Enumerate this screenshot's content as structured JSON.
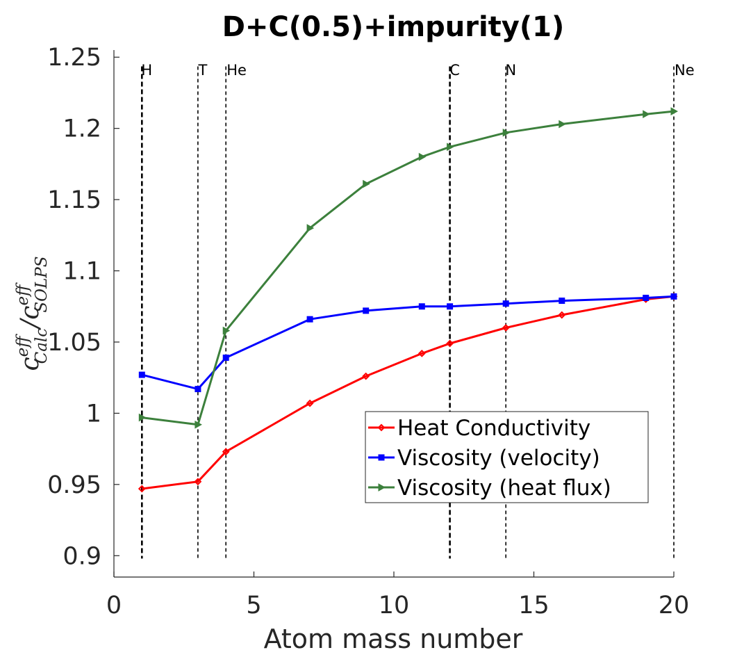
{
  "chart_data": {
    "type": "line",
    "title": "D+C(0.5)+impurity(1)",
    "xlabel": "Atom mass number",
    "ylabel": {
      "base1": "c",
      "sup1": "eff",
      "sub1": "Calc",
      "slash": "/",
      "base2": "c",
      "sup2": "eff",
      "sub2": "SOLPS"
    },
    "xlim": [
      0,
      20
    ],
    "ylim": [
      0.885,
      1.255
    ],
    "xticks": [
      0,
      5,
      10,
      15,
      20
    ],
    "xtick_labels": [
      "0",
      "5",
      "10",
      "15",
      "20"
    ],
    "yticks": [
      0.9,
      0.95,
      1.0,
      1.05,
      1.1,
      1.15,
      1.2,
      1.25
    ],
    "ytick_labels": [
      "0.9",
      "0.95",
      "1",
      "1.05",
      "1.1",
      "1.15",
      "1.2",
      "1.25"
    ],
    "grid": false,
    "legend_position": "lower-right",
    "element_markers": [
      {
        "label": "H",
        "x": 1,
        "style": "thick"
      },
      {
        "label": "T",
        "x": 3,
        "style": "thin"
      },
      {
        "label": "He",
        "x": 4,
        "style": "thin"
      },
      {
        "label": "C",
        "x": 12,
        "style": "thick"
      },
      {
        "label": "N",
        "x": 14,
        "style": "thin"
      },
      {
        "label": "Ne",
        "x": 20,
        "style": "thin"
      }
    ],
    "x": [
      1,
      3,
      4,
      7,
      9,
      11,
      12,
      14,
      16,
      19,
      20
    ],
    "series": [
      {
        "name": "Heat Conductivity",
        "color": "#ff0000",
        "marker": "diamond",
        "values": [
          0.947,
          0.952,
          0.973,
          1.007,
          1.026,
          1.042,
          1.049,
          1.06,
          1.069,
          1.08,
          1.082
        ]
      },
      {
        "name": "Viscosity (velocity)",
        "color": "#0000ff",
        "marker": "square",
        "values": [
          1.027,
          1.017,
          1.039,
          1.066,
          1.072,
          1.075,
          1.075,
          1.077,
          1.079,
          1.081,
          1.082
        ]
      },
      {
        "name": "Viscosity (heat flux)",
        "color": "#3c803c",
        "marker": "triangle-right",
        "values": [
          0.997,
          0.992,
          1.058,
          1.13,
          1.161,
          1.18,
          1.187,
          1.197,
          1.203,
          1.21,
          1.212
        ]
      }
    ]
  }
}
